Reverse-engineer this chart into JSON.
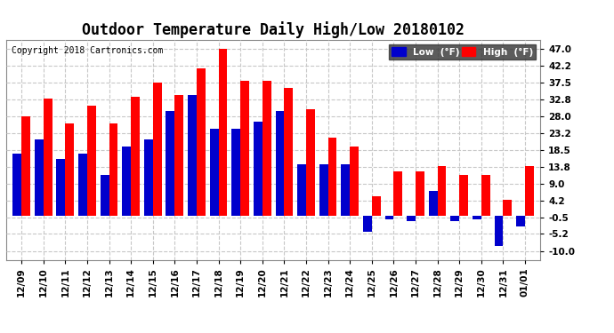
{
  "title": "Outdoor Temperature Daily High/Low 20180102",
  "copyright": "Copyright 2018 Cartronics.com",
  "legend_low": "Low  (°F)",
  "legend_high": "High  (°F)",
  "dates": [
    "12/09",
    "12/10",
    "12/11",
    "12/12",
    "12/13",
    "12/14",
    "12/15",
    "12/16",
    "12/17",
    "12/18",
    "12/19",
    "12/20",
    "12/21",
    "12/22",
    "12/23",
    "12/24",
    "12/25",
    "12/26",
    "12/27",
    "12/28",
    "12/29",
    "12/30",
    "12/31",
    "01/01"
  ],
  "high": [
    28.0,
    33.0,
    26.0,
    31.0,
    26.0,
    33.5,
    37.5,
    34.0,
    41.5,
    47.0,
    38.0,
    38.0,
    36.0,
    30.0,
    22.0,
    19.5,
    5.5,
    12.5,
    12.5,
    14.0,
    11.5,
    11.5,
    4.5,
    14.0
  ],
  "low": [
    17.5,
    21.5,
    16.0,
    17.5,
    11.5,
    19.5,
    21.5,
    29.5,
    34.0,
    24.5,
    24.5,
    26.5,
    29.5,
    14.5,
    14.5,
    14.5,
    -4.5,
    -1.0,
    -1.5,
    7.0,
    -1.5,
    -1.0,
    -8.5,
    -3.0
  ],
  "bar_color_high": "#ff0000",
  "bar_color_low": "#0000cc",
  "background_color": "#ffffff",
  "plot_bg_color": "#ffffff",
  "grid_color": "#c8c8c8",
  "yticks": [
    -10.0,
    -5.2,
    -0.5,
    4.2,
    9.0,
    13.8,
    18.5,
    23.2,
    28.0,
    32.8,
    37.5,
    42.2,
    47.0
  ],
  "ylim": [
    -12.5,
    49.5
  ],
  "title_fontsize": 12,
  "copyright_fontsize": 7,
  "tick_fontsize": 7.5,
  "bar_width": 0.4
}
